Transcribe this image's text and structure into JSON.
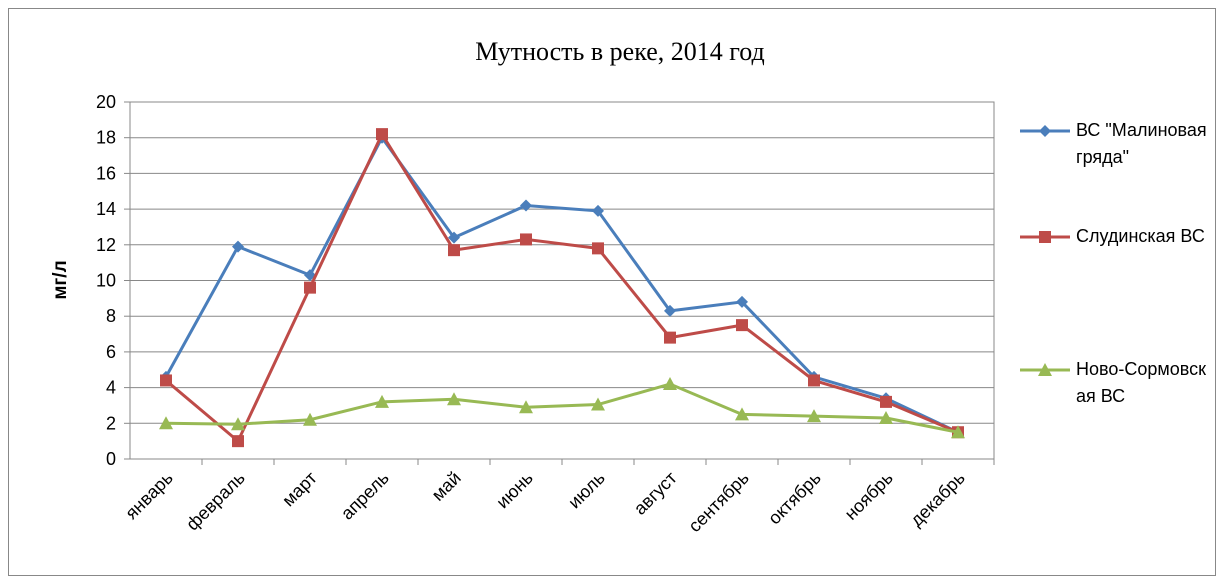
{
  "chart_data": {
    "type": "line",
    "title": "Мутность в реке, 2014 год",
    "y_label": "мг/л",
    "categories": [
      "январь",
      "февраль",
      "март",
      "апрель",
      "май",
      "июнь",
      "июль",
      "август",
      "сентябрь",
      "октябрь",
      "ноябрь",
      "декабрь"
    ],
    "series": [
      {
        "name": "ВС \"Малиновая гряда\"",
        "color": "#4a7ebb",
        "marker": "diamond",
        "values": [
          4.6,
          11.9,
          10.3,
          18.0,
          12.4,
          14.2,
          13.9,
          8.3,
          8.8,
          4.6,
          3.4,
          1.5
        ]
      },
      {
        "name": "Слудинская ВС",
        "color": "#be4b48",
        "marker": "square",
        "values": [
          4.4,
          1.0,
          9.6,
          18.2,
          11.7,
          12.3,
          11.8,
          6.8,
          7.5,
          4.4,
          3.2,
          1.5
        ]
      },
      {
        "name": "Ново-Сормовская ВС",
        "color": "#98b954",
        "marker": "triangle",
        "values": [
          2.0,
          1.95,
          2.2,
          3.2,
          3.35,
          2.9,
          3.05,
          4.2,
          2.5,
          2.4,
          2.3,
          1.5
        ]
      }
    ],
    "ylim": [
      0,
      20
    ],
    "yticks": [
      0,
      2,
      4,
      6,
      8,
      10,
      12,
      14,
      16,
      18,
      20
    ],
    "grid": true,
    "legend": "right"
  }
}
